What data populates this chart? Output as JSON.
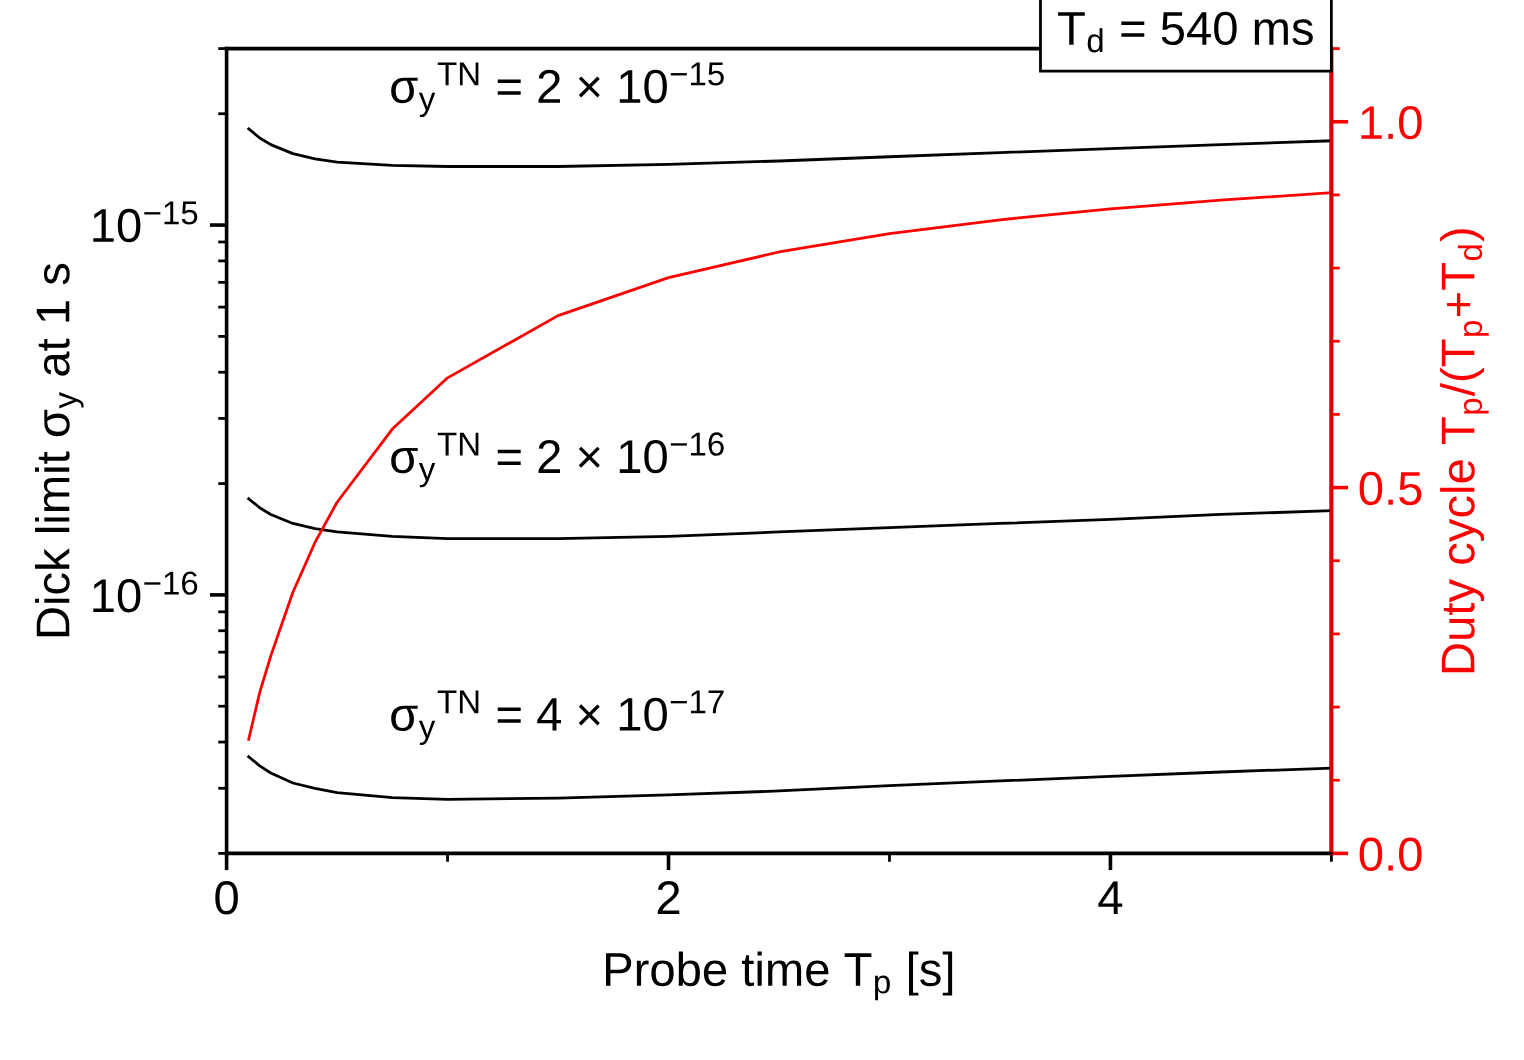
{
  "chart_data": {
    "type": "line",
    "xlabel": "Probe time T$_{p}$ [s]",
    "ylabel": "Dick limit σ$_{y}$ at 1 s",
    "y2label": "Duty cycle T$_{p}$/(T$_{p}$+T$_{d}$)",
    "annotations": [
      "T$_{d}$ = 540 ms"
    ],
    "x": [
      0.1,
      0.15,
      0.2,
      0.3,
      0.4,
      0.5,
      0.75,
      1,
      1.5,
      2,
      2.5,
      3,
      3.5,
      4,
      4.5,
      5
    ],
    "series": [
      {
        "name": "σ$_{y}$$^{TN}$ = 2 × 10$^{−15}$",
        "color": "#000000",
        "values": [
          1.82e-15,
          1.72e-15,
          1.65e-15,
          1.56e-15,
          1.51e-15,
          1.48e-15,
          1.45e-15,
          1.44e-15,
          1.44e-15,
          1.46e-15,
          1.49e-15,
          1.53e-15,
          1.57e-15,
          1.61e-15,
          1.65e-15,
          1.69e-15
        ]
      },
      {
        "name": "σ$_{y}$$^{TN}$ = 2 × 10$^{−16}$",
        "color": "#000000",
        "values": [
          1.82e-16,
          1.72e-16,
          1.65e-16,
          1.56e-16,
          1.51e-16,
          1.48e-16,
          1.44e-16,
          1.42e-16,
          1.42e-16,
          1.44e-16,
          1.48e-16,
          1.52e-16,
          1.56e-16,
          1.6e-16,
          1.65e-16,
          1.69e-16
        ]
      },
      {
        "name": "σ$_{y}$$^{TN}$ = 4 × 10$^{−17}$",
        "color": "#000000",
        "values": [
          3.65e-17,
          3.45e-17,
          3.3e-17,
          3.1e-17,
          3e-17,
          2.92e-17,
          2.83e-17,
          2.8e-17,
          2.82e-17,
          2.88e-17,
          2.95e-17,
          3.05e-17,
          3.14e-17,
          3.23e-17,
          3.32e-17,
          3.4e-17
        ]
      },
      {
        "color": "#ff0000",
        "axis": "y2",
        "values": [
          0.156,
          0.22,
          0.27,
          0.357,
          0.425,
          0.48,
          0.58,
          0.65,
          0.735,
          0.787,
          0.822,
          0.847,
          0.866,
          0.881,
          0.893,
          0.903
        ]
      }
    ],
    "log": "y",
    "xlim": [
      0,
      5
    ],
    "xticks": [
      0,
      2,
      4
    ],
    "ylim": [
      2e-17,
      3e-15
    ],
    "yticks": [
      {
        "value": 1e-16,
        "label": "10$^{−16}$"
      },
      {
        "value": 1e-15,
        "label": "10$^{−15}$"
      }
    ],
    "y2lim": [
      0,
      1.1
    ],
    "y2ticks": [
      {
        "value": 0,
        "label": "0.0"
      },
      {
        "value": 0.5,
        "label": "0.5"
      },
      {
        "value": 1,
        "label": "1.0"
      }
    ],
    "grid": false,
    "legend": false,
    "marker": "none",
    "line_style": "solid"
  }
}
